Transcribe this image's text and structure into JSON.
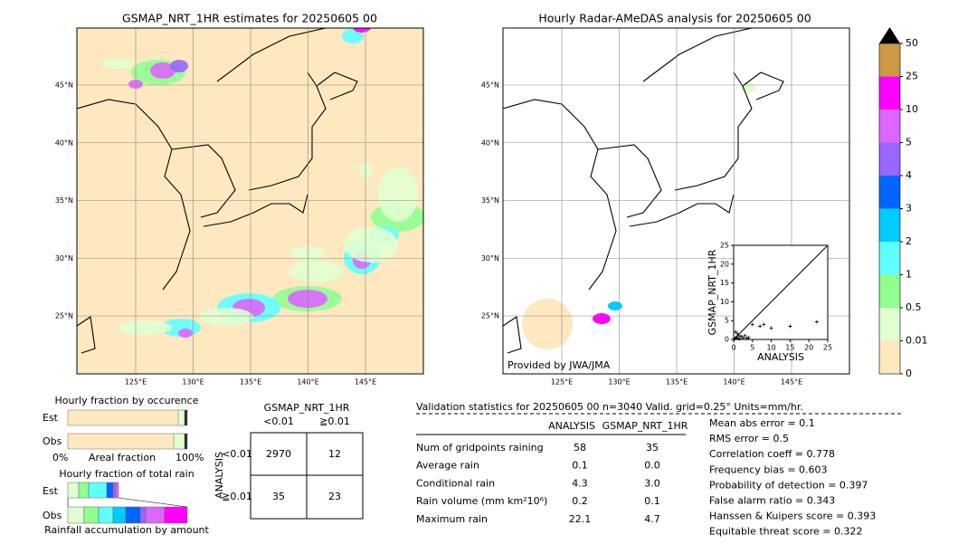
{
  "left_map": {
    "title": "GSMAP_NRT_1HR estimates for 20250605 00",
    "lat_labels": [
      "45°N",
      "40°N",
      "35°N",
      "30°N",
      "25°N"
    ],
    "lon_labels": [
      "125°E",
      "130°E",
      "135°E",
      "140°E",
      "145°E"
    ]
  },
  "right_map": {
    "title": "Hourly Radar-AMeDAS analysis for 20250605 00",
    "lat_labels": [
      "45°N",
      "40°N",
      "35°N",
      "30°N",
      "25°N"
    ],
    "lon_labels": [
      "125°E",
      "130°E",
      "135°E",
      "140°E",
      "145°E"
    ],
    "credit": "Provided by JWA/JMA"
  },
  "scatter": {
    "xlabel": "ANALYSIS",
    "ylabel": "GSMAP_NRT_1HR",
    "xlim": [
      0,
      25
    ],
    "ylim": [
      0,
      25
    ],
    "xticks": [
      0,
      5,
      10,
      15,
      20,
      25
    ],
    "yticks": [
      0,
      5,
      10,
      15,
      20,
      25
    ],
    "x": [
      0.3,
      0.6,
      1,
      1.4,
      2,
      2.5,
      3,
      4,
      0.5,
      1,
      5,
      7,
      8,
      10,
      15,
      22.1,
      1.5,
      3.5
    ],
    "y": [
      0.2,
      0.5,
      0.3,
      1,
      0.8,
      0.4,
      1,
      0.5,
      2,
      1.5,
      4,
      3.5,
      4,
      3,
      3.5,
      4.7,
      0.2,
      0.3
    ]
  },
  "colorbar": {
    "labels": [
      "0",
      "0.01",
      "0.5",
      "1",
      "2",
      "3",
      "4",
      "5",
      "10",
      "25",
      "50"
    ],
    "colors": [
      "#fde8c0",
      "#e0ffd0",
      "#90ff90",
      "#60ffff",
      "#00ccff",
      "#0066ff",
      "#9966ff",
      "#dd66ff",
      "#ff00ff",
      "#cc9944"
    ],
    "extend_color": "#000000"
  },
  "occurrence": {
    "title": "Hourly fraction by occurence",
    "rows": [
      "Est",
      "Obs"
    ],
    "axis_left": "0%",
    "axis_label": "Areal fraction",
    "axis_right": "100%"
  },
  "amount": {
    "title": "Hourly fraction of total rain",
    "rows": [
      "Est",
      "Obs"
    ],
    "caption": "Rainfall accumulation by amount"
  },
  "contingency": {
    "title": "GSMAP_NRT_1HR",
    "cols": [
      "<0.01",
      "≧0.01"
    ],
    "axis": "ANALYSIS",
    "row_labels": [
      "<0.01",
      "≧0.01"
    ],
    "cells": [
      [
        "2970",
        "12"
      ],
      [
        "35",
        "23"
      ]
    ]
  },
  "validation": {
    "header": "Validation statistics for 20250605 00  n=3040 Valid. grid=0.25° Units=mm/hr.",
    "cols": [
      "ANALYSIS",
      "GSMAP_NRT_1HR"
    ],
    "rows": [
      [
        "Num of gridpoints raining",
        "58",
        "35"
      ],
      [
        "Average rain",
        "0.1",
        "0.0"
      ],
      [
        "Conditional rain",
        "4.3",
        "3.0"
      ],
      [
        "Rain volume (mm km²10⁶)",
        "0.2",
        "0.1"
      ],
      [
        "Maximum rain",
        "22.1",
        "4.7"
      ]
    ],
    "scores": [
      "Mean abs error =    0.1",
      "RMS error =    0.5",
      "Correlation coeff =  0.778",
      "Frequency bias =  0.603",
      "Probability of detection =  0.397",
      "False alarm ratio =  0.343",
      "Hanssen & Kuipers score =  0.393",
      "Equitable threat score =  0.322"
    ]
  }
}
